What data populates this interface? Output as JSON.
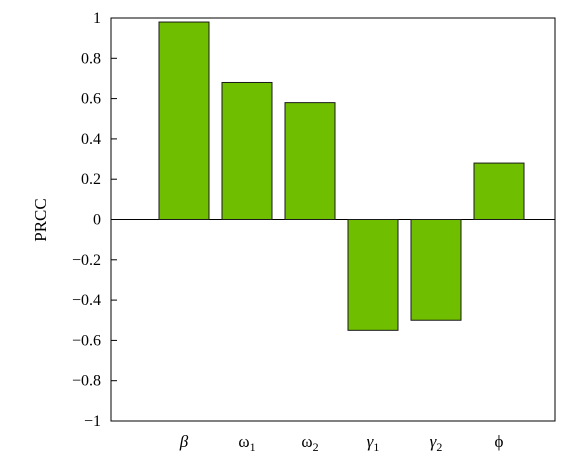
{
  "chart_data": {
    "type": "bar",
    "title": "",
    "xlabel": "",
    "ylabel": "PRCC",
    "ylim": [
      -1,
      1
    ],
    "yticks": [
      1,
      0.8,
      0.6,
      0.4,
      0.2,
      0,
      -0.2,
      -0.4,
      -0.6,
      -0.8,
      -1
    ],
    "ytick_labels": [
      "1",
      "0.8",
      "0.6",
      "0.4",
      "0.2",
      "0",
      "−0.2",
      "−0.4",
      "−0.6",
      "−0.8",
      "−1"
    ],
    "categories": [
      {
        "symbol": "β",
        "sub": "",
        "italic": true
      },
      {
        "symbol": "ω",
        "sub": "1",
        "italic": false
      },
      {
        "symbol": "ω",
        "sub": "2",
        "italic": false
      },
      {
        "symbol": "γ",
        "sub": "1",
        "italic": true
      },
      {
        "symbol": "γ",
        "sub": "2",
        "italic": true
      },
      {
        "symbol": "ϕ",
        "sub": "",
        "italic": false
      }
    ],
    "values": [
      0.98,
      0.68,
      0.58,
      -0.55,
      -0.5,
      0.28
    ],
    "bar_color": "#6fbe00",
    "bar_edge_color": "#1a1a1a",
    "grid": false
  }
}
